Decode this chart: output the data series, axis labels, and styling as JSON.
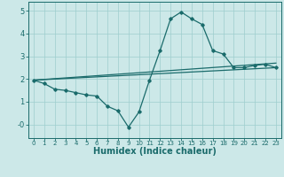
{
  "title": "",
  "xlabel": "Humidex (Indice chaleur)",
  "ylabel": "",
  "background_color": "#cce8e8",
  "line_color": "#1a6b6b",
  "xlim": [
    -0.5,
    23.5
  ],
  "ylim": [
    -0.6,
    5.4
  ],
  "xtick_labels": [
    "0",
    "1",
    "2",
    "3",
    "4",
    "5",
    "6",
    "7",
    "8",
    "9",
    "10",
    "11",
    "12",
    "13",
    "14",
    "15",
    "16",
    "17",
    "18",
    "19",
    "20",
    "21",
    "22",
    "23"
  ],
  "xtick_vals": [
    0,
    1,
    2,
    3,
    4,
    5,
    6,
    7,
    8,
    9,
    10,
    11,
    12,
    13,
    14,
    15,
    16,
    17,
    18,
    19,
    20,
    21,
    22,
    23
  ],
  "ytick_vals": [
    0,
    1,
    2,
    3,
    4,
    5
  ],
  "ytick_labels": [
    "-0",
    "1",
    "2",
    "3",
    "4",
    "5"
  ],
  "curve1_x": [
    0,
    1,
    2,
    3,
    4,
    5,
    6,
    7,
    8,
    9,
    10,
    11,
    12,
    13,
    14,
    15,
    16,
    17,
    18,
    19,
    20,
    21,
    22,
    23
  ],
  "curve1_y": [
    1.95,
    1.8,
    1.55,
    1.5,
    1.4,
    1.3,
    1.25,
    0.8,
    0.6,
    -0.12,
    0.55,
    1.95,
    3.25,
    4.65,
    4.95,
    4.65,
    4.4,
    3.25,
    3.1,
    2.5,
    2.5,
    2.6,
    2.65,
    2.5
  ],
  "curve2_x": [
    0,
    23
  ],
  "curve2_y": [
    1.95,
    2.7
  ],
  "curve3_x": [
    0,
    23
  ],
  "curve3_y": [
    1.95,
    2.5
  ],
  "grid_color": "#9ecece",
  "marker": "D",
  "marker_size": 1.8,
  "linewidth": 0.9
}
